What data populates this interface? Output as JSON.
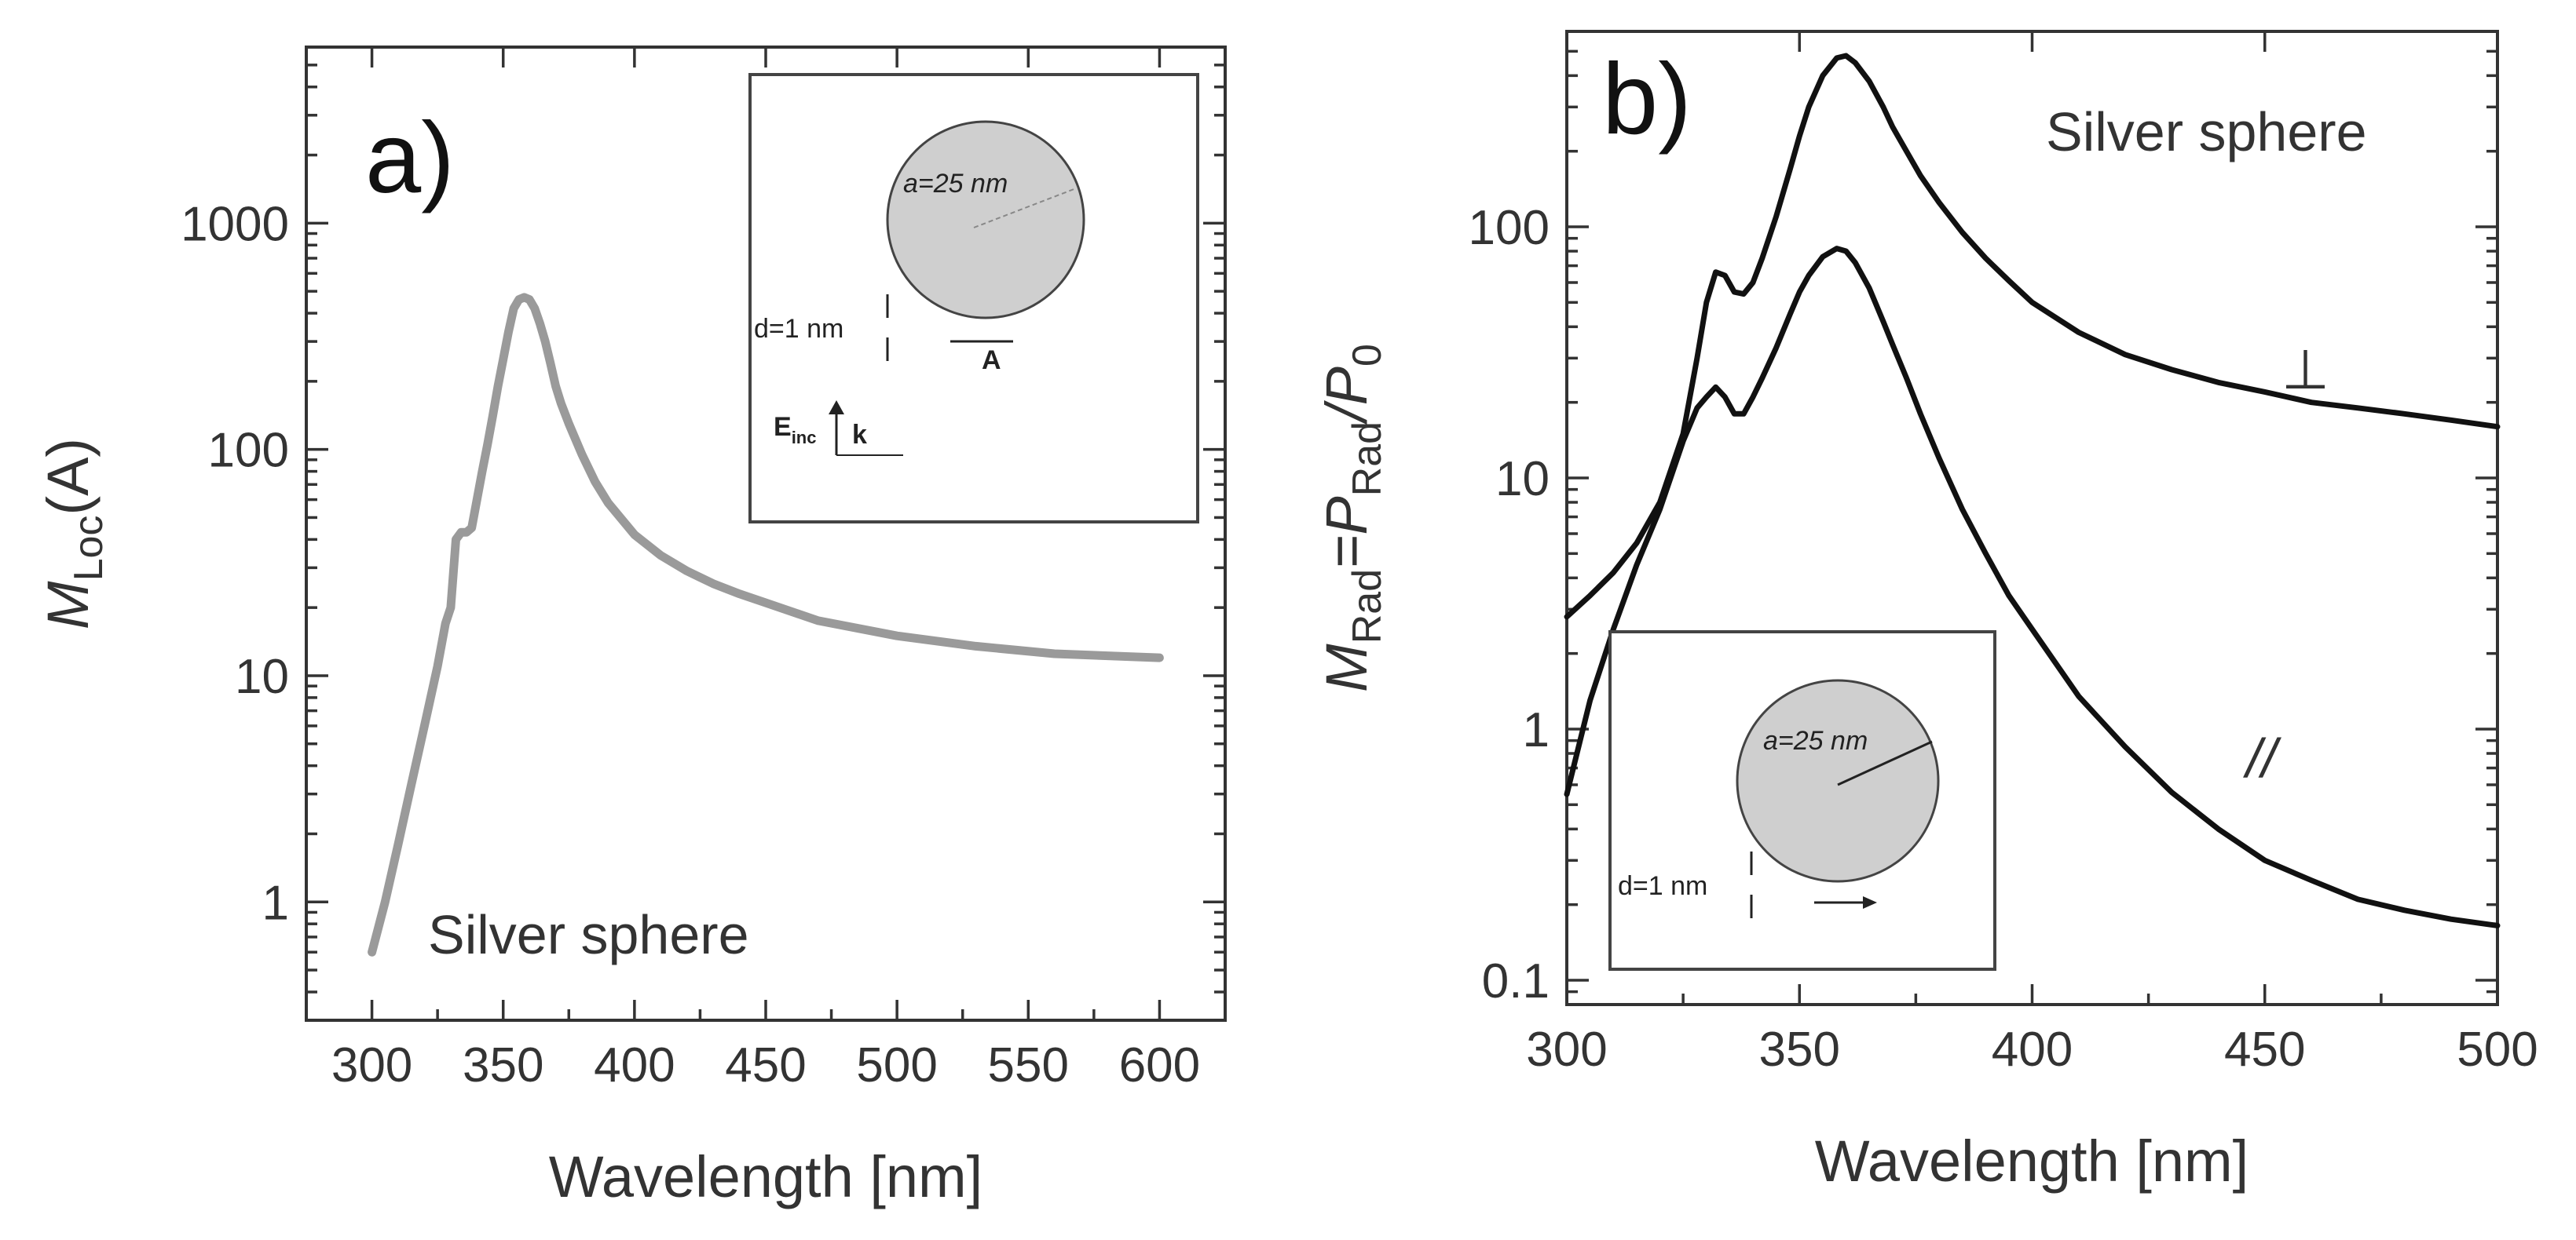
{
  "figure": {
    "panel_a": {
      "label": "a)",
      "annotation": "Silver sphere",
      "inset": {
        "radius_label": "a=25 nm",
        "gap_label": "d=1 nm",
        "point_label": "A",
        "field_label_E": "E",
        "field_label_E_sub": "inc",
        "field_label_k": "k"
      }
    },
    "panel_b": {
      "label": "b)",
      "annotation": "Silver sphere",
      "perp_label": "⊥",
      "parallel_label": "//",
      "inset": {
        "radius_label": "a=25 nm",
        "gap_label": "d=1 nm"
      }
    },
    "colors": {
      "curve_a": "#9a9a9a",
      "curve_b": "#111111",
      "inset_sphere": "#cfcfcf"
    }
  },
  "chart_data": [
    {
      "type": "line",
      "title": "",
      "xlabel": "Wavelength [nm]",
      "ylabel": "M_Loc(A)",
      "ylabel_main": "M",
      "ylabel_sub": "Loc",
      "ylabel_tail": "(A)",
      "xlim": [
        275,
        625
      ],
      "ylim": [
        0.3,
        6000
      ],
      "yscale": "log",
      "xticks": [
        300,
        350,
        400,
        450,
        500,
        550,
        600
      ],
      "yticks": [
        1,
        10,
        100,
        1000
      ],
      "ytick_labels": [
        "1",
        "10",
        "100",
        "1000"
      ],
      "series": [
        {
          "x": [
            300,
            305,
            310,
            315,
            320,
            325,
            328,
            330,
            332,
            334,
            336,
            338,
            340,
            342,
            344,
            346,
            348,
            350,
            352,
            354,
            356,
            358,
            360,
            362,
            364,
            366,
            368,
            370,
            372,
            375,
            380,
            385,
            390,
            400,
            410,
            420,
            430,
            440,
            450,
            470,
            500,
            530,
            560,
            600
          ],
          "y": [
            0.6,
            1.0,
            1.8,
            3.3,
            6.0,
            11,
            17,
            20,
            40,
            43,
            43,
            45,
            60,
            80,
            105,
            140,
            190,
            250,
            330,
            420,
            460,
            470,
            460,
            420,
            360,
            300,
            240,
            190,
            160,
            130,
            95,
            72,
            58,
            42,
            34,
            29,
            25.5,
            23,
            21,
            17.5,
            15,
            13.5,
            12.5,
            12
          ]
        }
      ]
    },
    {
      "type": "line",
      "title": "",
      "xlabel": "Wavelength [nm]",
      "ylabel": "M_Rad=P_Rad/P_0",
      "ylabel_parts": [
        "M",
        "Rad",
        "=P",
        "Rad",
        "/P",
        "0"
      ],
      "xlim": [
        300,
        500
      ],
      "ylim": [
        0.08,
        600
      ],
      "yscale": "log",
      "xticks": [
        300,
        350,
        400,
        450,
        500
      ],
      "yticks": [
        0.1,
        1,
        10,
        100
      ],
      "ytick_labels": [
        "0.1",
        "1",
        "10",
        "100"
      ],
      "series": [
        {
          "name": "⊥",
          "x": [
            300,
            305,
            310,
            315,
            320,
            325,
            328,
            330,
            332,
            334,
            336,
            338,
            340,
            342,
            345,
            348,
            350,
            352,
            355,
            358,
            360,
            362,
            365,
            368,
            370,
            373,
            376,
            380,
            385,
            390,
            395,
            400,
            410,
            420,
            430,
            440,
            450,
            460,
            470,
            480,
            490,
            500
          ],
          "y": [
            2.8,
            3.4,
            4.2,
            5.5,
            8.0,
            15,
            30,
            50,
            66,
            64,
            55,
            54,
            60,
            75,
            110,
            170,
            230,
            300,
            400,
            470,
            480,
            450,
            380,
            300,
            250,
            200,
            160,
            125,
            95,
            75,
            61,
            50,
            38,
            31,
            27,
            24,
            22,
            20,
            19,
            18,
            17,
            16
          ]
        },
        {
          "name": "//",
          "x": [
            300,
            305,
            310,
            315,
            320,
            325,
            328,
            330,
            332,
            334,
            336,
            338,
            340,
            342,
            345,
            348,
            350,
            352,
            355,
            358,
            360,
            362,
            365,
            368,
            370,
            373,
            376,
            380,
            385,
            390,
            395,
            400,
            410,
            420,
            430,
            440,
            450,
            460,
            470,
            480,
            490,
            500
          ],
          "y": [
            0.55,
            1.3,
            2.5,
            4.5,
            7.5,
            14,
            19,
            21,
            23,
            21,
            18,
            18,
            21,
            25,
            33,
            45,
            55,
            64,
            76,
            82,
            80,
            72,
            57,
            42,
            34,
            25,
            18,
            12,
            7.5,
            5,
            3.4,
            2.5,
            1.35,
            0.85,
            0.56,
            0.4,
            0.3,
            0.25,
            0.21,
            0.19,
            0.175,
            0.165
          ]
        }
      ]
    }
  ]
}
